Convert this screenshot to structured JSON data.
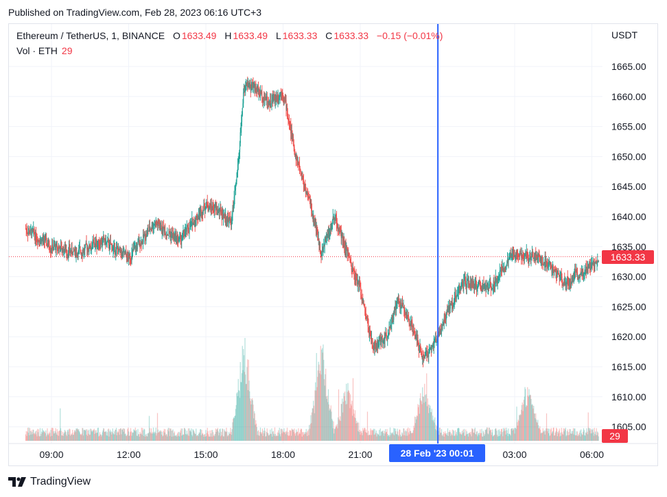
{
  "published": "Published on TradingView.com, Feb 28, 2023 06:16 UTC+3",
  "legend": {
    "symbol": "Ethereum / TetherUS, 1, BINANCE",
    "o_label": "O",
    "o_value": "1633.49",
    "h_label": "H",
    "h_value": "1633.49",
    "l_label": "L",
    "l_value": "1633.33",
    "c_label": "C",
    "c_value": "1633.33",
    "change": "−0.15 (−0.01%)"
  },
  "volume_legend": {
    "label": "Vol · ETH",
    "value": "29"
  },
  "axis_unit": "USDT",
  "price_badge": "1633.33",
  "volume_badge": "29",
  "cursor_badge": "28 Feb '23   00:01",
  "footer": {
    "brand": "TradingView"
  },
  "colors": {
    "up": "#26a69a",
    "down": "#ef5350",
    "cursor": "#2962ff",
    "last_price": "#f23645",
    "grid": "#f0f3fa"
  },
  "chart_data": {
    "type": "candlestick",
    "title": "Ethereum / TetherUS, 1, BINANCE",
    "timeframe": "1 minute",
    "xlabel": "",
    "ylabel": "USDT",
    "ylim": [
      1602,
      1669
    ],
    "y_ticks": [
      1605,
      1610,
      1615,
      1620,
      1625,
      1630,
      1635,
      1640,
      1645,
      1650,
      1655,
      1660,
      1665
    ],
    "x_ticks": [
      "09:00",
      "12:00",
      "15:00",
      "18:00",
      "21:00",
      "00:00",
      "03:00",
      "06:00"
    ],
    "last_price": 1633.33,
    "grid": true,
    "price_path": {
      "time": [
        "08:00",
        "09:00",
        "10:00",
        "11:00",
        "12:00",
        "13:00",
        "14:00",
        "15:00",
        "15:30",
        "16:00",
        "16:15",
        "16:30",
        "17:00",
        "17:30",
        "18:00",
        "18:30",
        "19:00",
        "19:30",
        "20:00",
        "20:30",
        "21:00",
        "21:30",
        "22:00",
        "22:30",
        "23:00",
        "23:30",
        "00:00",
        "00:30",
        "01:00",
        "02:00",
        "03:00",
        "04:00",
        "05:00",
        "06:00",
        "06:16"
      ],
      "price": [
        1638,
        1635,
        1634,
        1636,
        1633,
        1639,
        1636,
        1642,
        1641,
        1639,
        1648,
        1662,
        1661,
        1659,
        1661,
        1650,
        1643,
        1634,
        1640,
        1634,
        1628,
        1618,
        1620,
        1626,
        1622,
        1616,
        1620,
        1625,
        1629,
        1628,
        1634,
        1633,
        1629,
        1632,
        1633.33
      ]
    },
    "volume": {
      "unit": "ETH",
      "last": 29,
      "spikes": [
        {
          "time": "16:30",
          "level": "high"
        },
        {
          "time": "19:30",
          "level": "high"
        },
        {
          "time": "20:30",
          "level": "medium"
        },
        {
          "time": "23:30",
          "level": "medium"
        },
        {
          "time": "03:30",
          "level": "medium"
        }
      ]
    }
  }
}
